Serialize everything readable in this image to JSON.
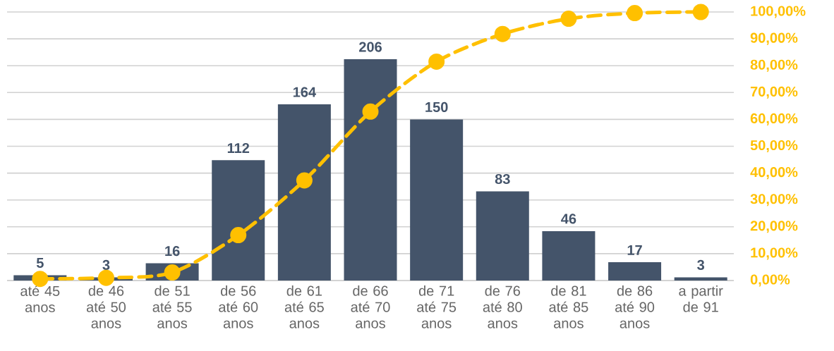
{
  "chart_data": {
    "type": "bar",
    "categories": [
      "até 45 anos",
      "de 46 até 50 anos",
      "de 51 até 55 anos",
      "de 56 até 60 anos",
      "de 61 até 65 anos",
      "de 66 até 70 anos",
      "de 71 até 75 anos",
      "de 76 até 80 anos",
      "de 81 até 85 anos",
      "de 86 até 90 anos",
      "a partir de 91"
    ],
    "series": [
      {
        "color": "#44546a",
        "values": [
          5,
          3,
          16,
          112,
          164,
          206,
          150,
          83,
          46,
          17,
          3
        ],
        "value_labels": [
          "5",
          "3",
          "16",
          "112",
          "164",
          "206",
          "150",
          "83",
          "46",
          "17",
          "3"
        ]
      },
      {
        "type": "line",
        "axis": "y2",
        "color": "#ffc000",
        "marker": "circle",
        "line_style": "dashed",
        "values": [
          0.6,
          1.0,
          3.0,
          16.9,
          37.3,
          62.9,
          81.5,
          91.8,
          97.5,
          99.6,
          100
        ]
      }
    ],
    "ylim": [
      0,
      250
    ],
    "yticks": [
      {
        "value": 0,
        "label": null
      },
      {
        "value": 25,
        "label": null
      },
      {
        "value": 50,
        "label": null
      },
      {
        "value": 75,
        "label": null
      },
      {
        "value": 100,
        "label": null
      },
      {
        "value": 125,
        "label": null
      },
      {
        "value": 150,
        "label": null
      },
      {
        "value": 175,
        "label": null
      },
      {
        "value": 200,
        "label": null
      },
      {
        "value": 225,
        "label": null
      },
      {
        "value": 250,
        "label": null
      }
    ],
    "y2lim": [
      0,
      100
    ],
    "y2ticks": [
      {
        "value": 0,
        "label": "0,00%"
      },
      {
        "value": 10,
        "label": "10,00%"
      },
      {
        "value": 20,
        "label": "20,00%"
      },
      {
        "value": 30,
        "label": "30,00%"
      },
      {
        "value": 40,
        "label": "40,00%"
      },
      {
        "value": 50,
        "label": "50,00%"
      },
      {
        "value": 60,
        "label": "60,00%"
      },
      {
        "value": 70,
        "label": "70,00%"
      },
      {
        "value": 80,
        "label": "80,00%"
      },
      {
        "value": 90,
        "label": "90,00%"
      },
      {
        "value": 100,
        "label": "100,00%"
      }
    ],
    "grid": "y"
  }
}
